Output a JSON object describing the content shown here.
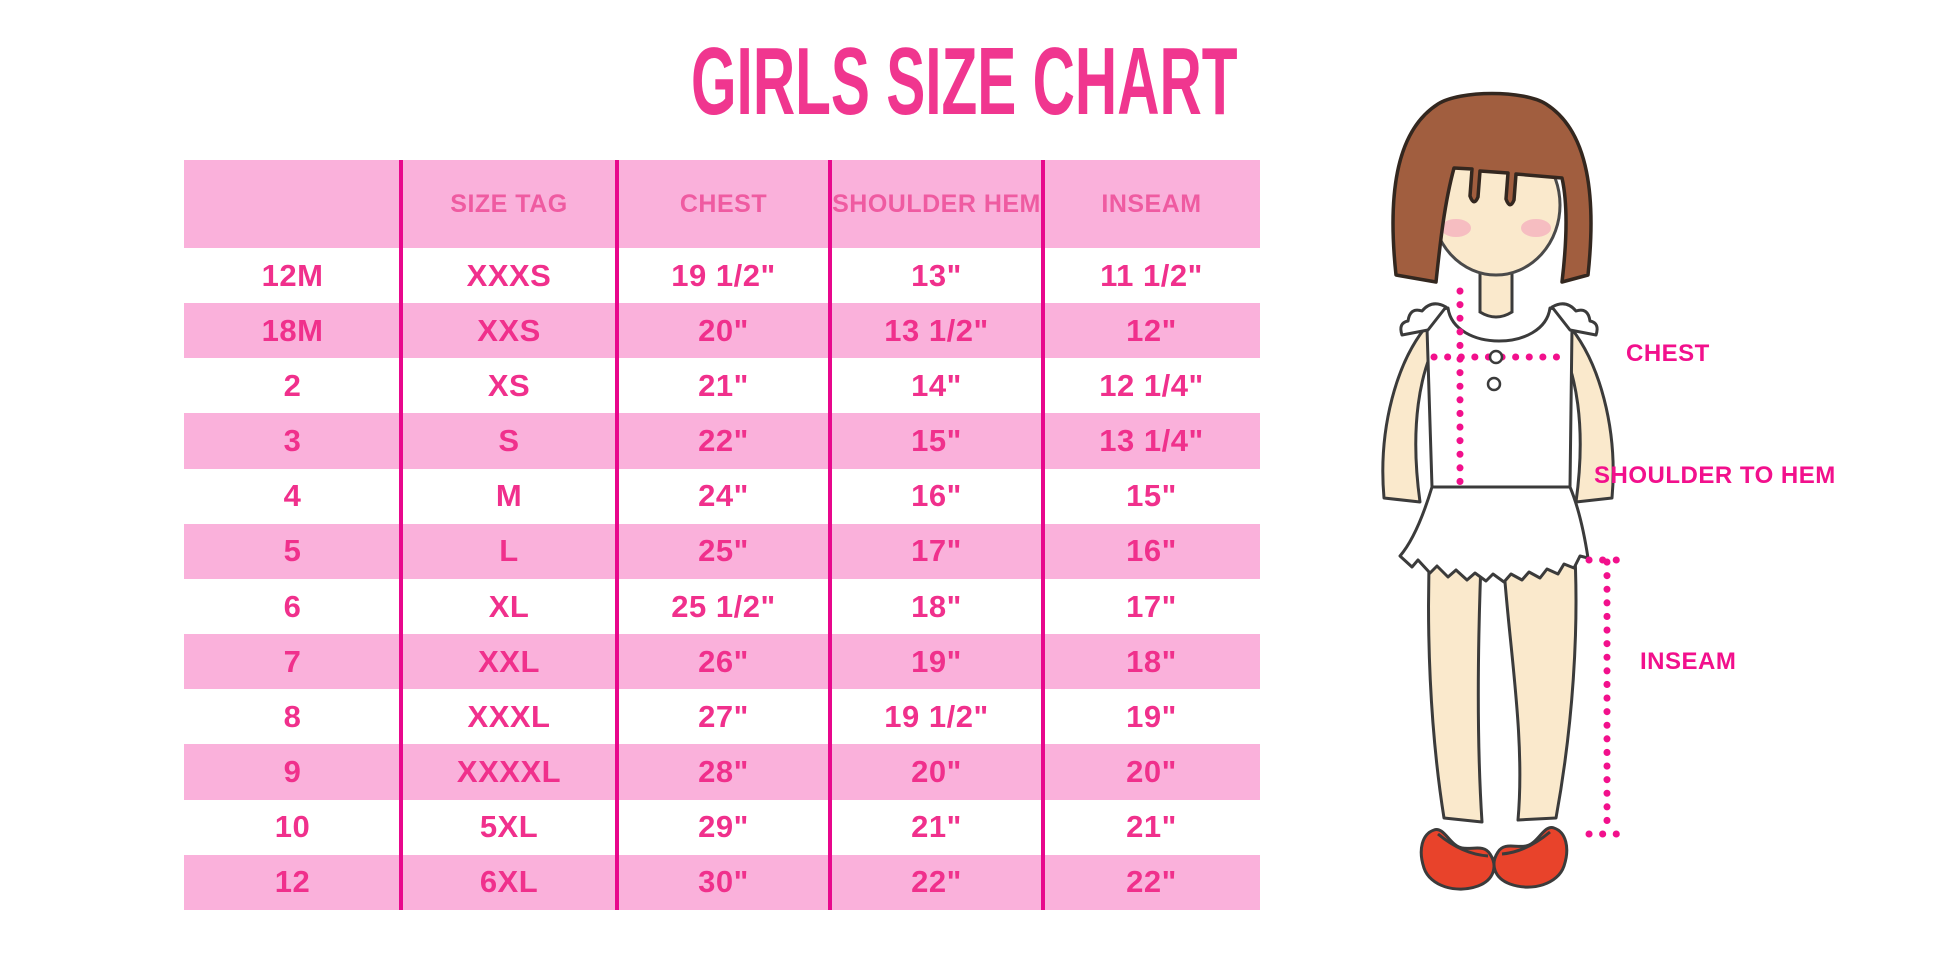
{
  "title": "GIRLS SIZE CHART",
  "chart_data": {
    "type": "table",
    "title": "GIRLS SIZE CHART",
    "columns": [
      "",
      "SIZE TAG",
      "CHEST",
      "SHOULDER HEM",
      "INSEAM"
    ],
    "rows": [
      [
        "12M",
        "XXXS",
        "19 1/2\"",
        "13\"",
        "11 1/2\""
      ],
      [
        "18M",
        "XXS",
        "20\"",
        "13 1/2\"",
        "12\""
      ],
      [
        "2",
        "XS",
        "21\"",
        "14\"",
        "12 1/4\""
      ],
      [
        "3",
        "S",
        "22\"",
        "15\"",
        "13 1/4\""
      ],
      [
        "4",
        "M",
        "24\"",
        "16\"",
        "15\""
      ],
      [
        "5",
        "L",
        "25\"",
        "17\"",
        "16\""
      ],
      [
        "6",
        "XL",
        "25 1/2\"",
        "18\"",
        "17\""
      ],
      [
        "7",
        "XXL",
        "26\"",
        "19\"",
        "18\""
      ],
      [
        "8",
        "XXXL",
        "27\"",
        "19 1/2\"",
        "19\""
      ],
      [
        "9",
        "XXXXL",
        "28\"",
        "20\"",
        "20\""
      ],
      [
        "10",
        "5XL",
        "29\"",
        "21\"",
        "21\""
      ],
      [
        "12",
        "6XL",
        "30\"",
        "22\"",
        "22\""
      ]
    ],
    "row_striping": "alternating white and pink starting white",
    "legend_position": "none",
    "grid": "vertical column dividers only"
  },
  "figure": {
    "chest_label": "CHEST",
    "shoulder_to_hem_label": "SHOULDER TO HEM",
    "inseam_label": "INSEAM"
  },
  "colors": {
    "title_pink": "#F0368F",
    "row_pink": "#FAB1DB",
    "divider_magenta": "#E8078C",
    "header_text_pink": "#EF5BA1",
    "cell_text_pink": "#F0308C",
    "measure_dotted_pink": "#F2108C",
    "hair_brown": "#A15E3F",
    "skin_peach": "#FAE9CC",
    "shoe_red": "#E8432B"
  }
}
